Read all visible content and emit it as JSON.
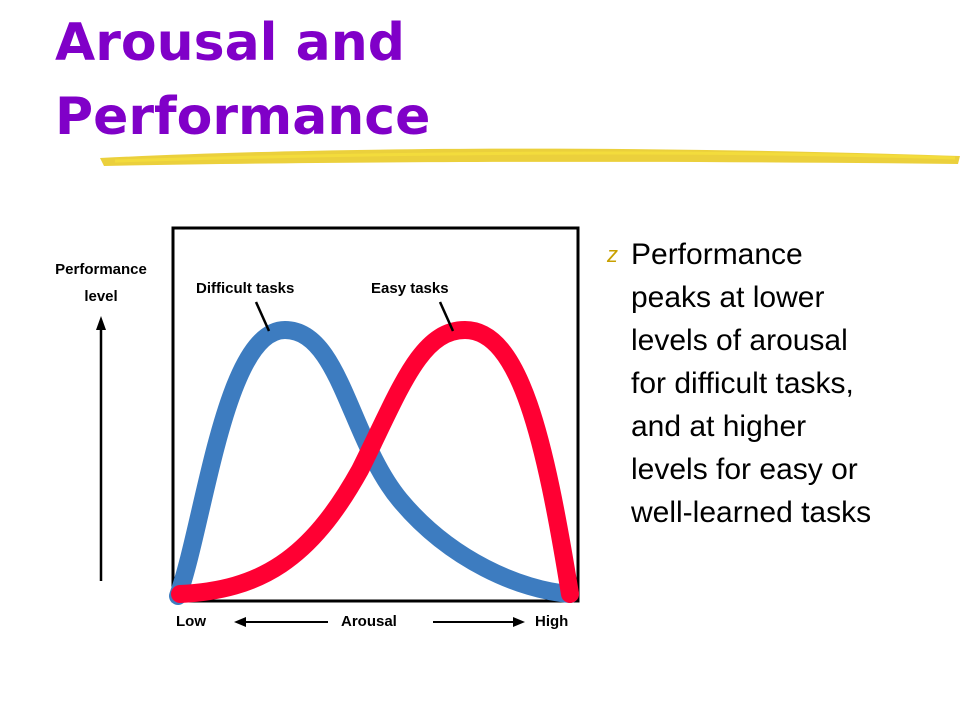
{
  "title_lines": [
    "Arousal and",
    "Performance"
  ],
  "bullet": {
    "marker": "z",
    "lines": [
      "Performance",
      "peaks at lower",
      "levels of arousal",
      "for difficult tasks,",
      "and at higher",
      "levels for easy or",
      "well-learned tasks"
    ]
  },
  "diagram": {
    "y_axis_label_lines": [
      "Performance",
      "level"
    ],
    "curve_labels": [
      "Difficult tasks",
      "Easy tasks"
    ],
    "x_low": "Low",
    "x_label": "Arousal",
    "x_high": "High"
  }
}
